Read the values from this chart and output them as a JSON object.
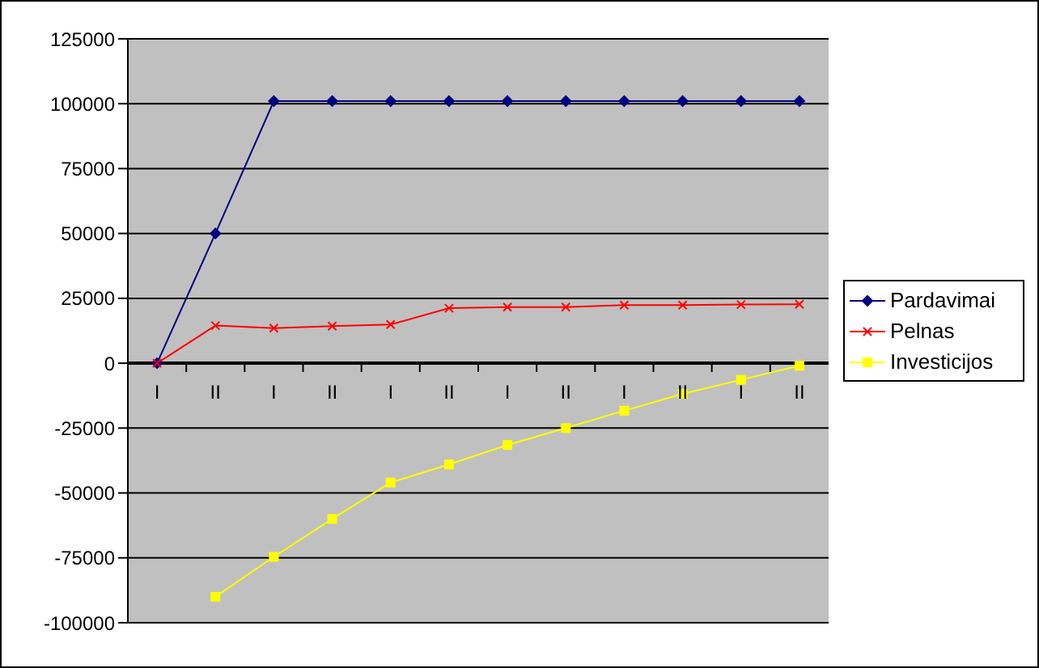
{
  "chart_data": {
    "type": "line",
    "categories": [
      "I",
      "II",
      "I",
      "II",
      "I",
      "II",
      "I",
      "II",
      "I",
      "II",
      "I",
      "II"
    ],
    "ylim": [
      -100000,
      125000
    ],
    "yticks": [
      -100000,
      -75000,
      -50000,
      -25000,
      0,
      25000,
      50000,
      75000,
      100000,
      125000
    ],
    "grid": "y",
    "legend": "right",
    "series": [
      {
        "name": "Pardavimai",
        "color": "#000080",
        "marker": "diamond",
        "values": [
          0,
          50000,
          101000,
          101000,
          101000,
          101000,
          101000,
          101000,
          101000,
          101000,
          101000,
          101000
        ]
      },
      {
        "name": "Pelnas",
        "color": "#ff0000",
        "marker": "cross",
        "values": [
          0,
          14500,
          13500,
          14300,
          14900,
          21200,
          21600,
          21600,
          22400,
          22400,
          22600,
          22700
        ]
      },
      {
        "name": "Investicijos",
        "color": "#ffff00",
        "marker": "square",
        "values": [
          null,
          -90000,
          -74600,
          -60000,
          -46000,
          -39000,
          -31500,
          -25000,
          -18300,
          -11800,
          -6400,
          -1000
        ]
      }
    ]
  }
}
